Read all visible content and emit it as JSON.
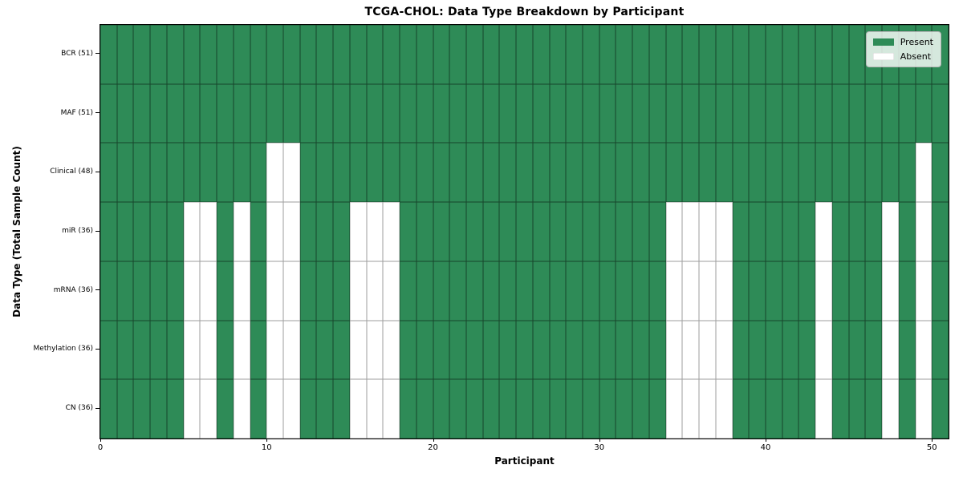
{
  "title": "TCGA-CHOL: Data Type Breakdown by Participant",
  "xlabel": "Participant",
  "ylabel": "Data Type (Total Sample Count)",
  "legend": {
    "present_label": "Present",
    "absent_label": "Absent"
  },
  "colors": {
    "present": "#2e8b57",
    "absent": "#ffffff",
    "present_edge": "rgba(0,0,0,0.5)",
    "absent_edge": "#9e9e9e",
    "spine": "#000000",
    "legend_border": "#b5b5b5",
    "legend_background": "rgba(255,255,255,0.8)"
  },
  "chart_data": {
    "type": "heatmap",
    "title": "TCGA-CHOL: Data Type Breakdown by Participant",
    "xlabel": "Participant",
    "ylabel": "Data Type (Total Sample Count)",
    "legend": [
      "Present",
      "Absent"
    ],
    "legend_position": "upper right",
    "grid": true,
    "n_participants": 51,
    "x_range": [
      0,
      51
    ],
    "x_ticks": [
      "0",
      "10",
      "20",
      "30",
      "40",
      "50"
    ],
    "x_tick_values": [
      0,
      10,
      20,
      30,
      40,
      50
    ],
    "value_encoding": {
      "present": 1,
      "absent": 0
    },
    "rows": [
      {
        "label": "BCR (51)",
        "total_present": 51,
        "absent_participants": []
      },
      {
        "label": "MAF (51)",
        "total_present": 51,
        "absent_participants": []
      },
      {
        "label": "Clinical (48)",
        "total_present": 48,
        "absent_participants": [
          10,
          11,
          49
        ]
      },
      {
        "label": "miR (36)",
        "total_present": 36,
        "absent_participants": [
          5,
          6,
          8,
          10,
          11,
          15,
          16,
          17,
          34,
          35,
          36,
          37,
          43,
          47,
          49
        ]
      },
      {
        "label": "mRNA (36)",
        "total_present": 36,
        "absent_participants": [
          5,
          6,
          8,
          10,
          11,
          15,
          16,
          17,
          34,
          35,
          36,
          37,
          43,
          47,
          49
        ]
      },
      {
        "label": "Methylation (36)",
        "total_present": 36,
        "absent_participants": [
          5,
          6,
          8,
          10,
          11,
          15,
          16,
          17,
          34,
          35,
          36,
          37,
          43,
          47,
          49
        ]
      },
      {
        "label": "CN (36)",
        "total_present": 36,
        "absent_participants": [
          5,
          6,
          8,
          10,
          11,
          15,
          16,
          17,
          34,
          35,
          36,
          37,
          43,
          47,
          49
        ]
      }
    ]
  }
}
